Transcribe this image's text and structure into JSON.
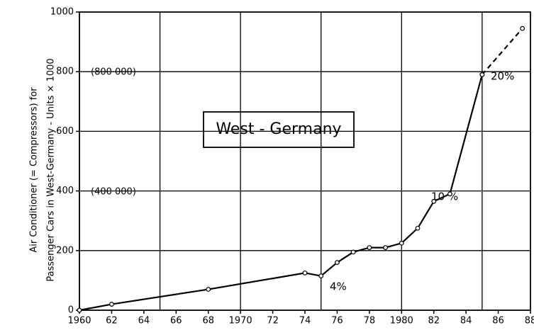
{
  "chart_data": {
    "type": "line",
    "ylabel": [
      "Air Conditioner (= Compressors) for",
      "Passenger Cars in West-Germany - Units × 1000"
    ],
    "x": [
      1960,
      1962,
      1968,
      1974,
      1975,
      1976,
      1977,
      1978,
      1979,
      1980,
      1981,
      1982,
      1983,
      1985,
      1987.5
    ],
    "series": [
      {
        "color": "#000000",
        "dashed": false,
        "values": [
          0,
          20,
          70,
          125,
          115,
          160,
          195,
          210,
          210,
          225,
          275,
          365,
          390,
          790,
          null
        ]
      },
      {
        "color": "#000000",
        "dashed": true,
        "values": [
          null,
          null,
          null,
          null,
          null,
          null,
          null,
          null,
          null,
          null,
          null,
          null,
          null,
          790,
          945
        ]
      }
    ],
    "xlim": [
      1960,
      1988
    ],
    "ylim": [
      0,
      1000
    ],
    "xticks": [
      1960,
      {
        "value": 1962,
        "label": "62"
      },
      {
        "value": 1964,
        "label": "64"
      },
      {
        "value": 1966,
        "label": "66"
      },
      {
        "value": 1968,
        "label": "68"
      },
      1970,
      {
        "value": 1972,
        "label": "72"
      },
      {
        "value": 1974,
        "label": "74"
      },
      {
        "value": 1976,
        "label": "76"
      },
      {
        "value": 1978,
        "label": "78"
      },
      1980,
      {
        "value": 1982,
        "label": "82"
      },
      {
        "value": 1984,
        "label": "84"
      },
      {
        "value": 1986,
        "label": "86"
      },
      {
        "value": 1988,
        "label": "88"
      }
    ],
    "yticks": [
      0,
      200,
      400,
      600,
      800,
      1000
    ],
    "xgrid": [
      1965,
      1970,
      1975,
      1980,
      1985
    ],
    "grid": true,
    "annotations": [
      "(800 000)",
      "(400 000)",
      "West - Germany",
      "20%",
      "10 %",
      "4%"
    ]
  }
}
